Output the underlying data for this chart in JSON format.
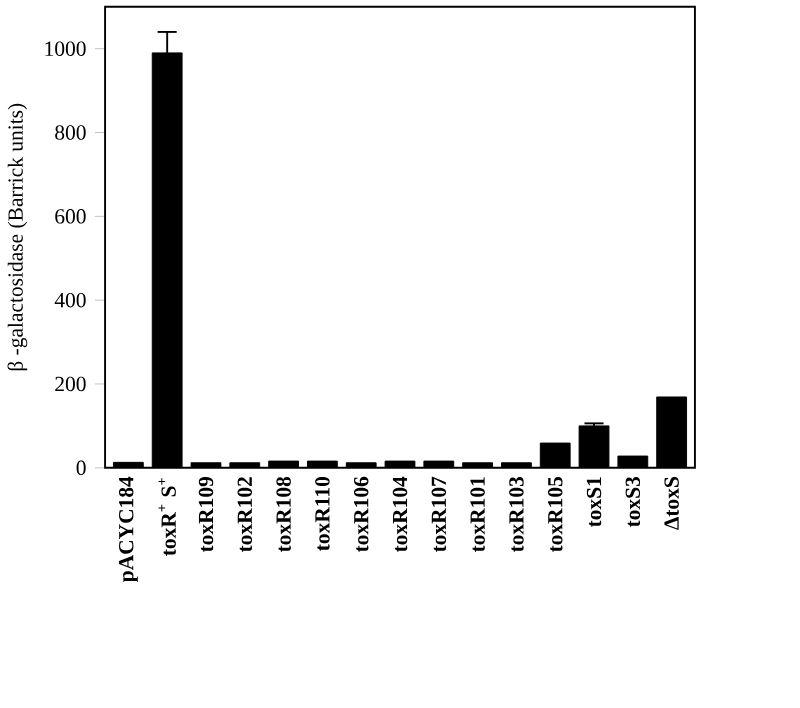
{
  "chart_data": {
    "type": "bar",
    "ylabel": "β -galactosidase (Barrick units)",
    "categories": [
      "pACYC184",
      "toxR$^{+}$ S$^{+}$",
      "toxR109",
      "toxR102",
      "toxR108",
      "toxR110",
      "toxR106",
      "toxR104",
      "toxR107",
      "toxR101",
      "toxR103",
      "toxR105",
      "toxS1",
      "toxS3",
      "ΔtoxS"
    ],
    "values": [
      13,
      990,
      12,
      12,
      16,
      16,
      12,
      16,
      16,
      12,
      12,
      59,
      100,
      28,
      169
    ],
    "errors": [
      null,
      50,
      null,
      null,
      null,
      null,
      null,
      null,
      null,
      null,
      null,
      null,
      6,
      null,
      null
    ],
    "color": "#000000",
    "ylim": [
      0,
      1100
    ],
    "yticks": [
      0,
      200,
      400,
      600,
      800,
      1000
    ],
    "grid": false
  }
}
